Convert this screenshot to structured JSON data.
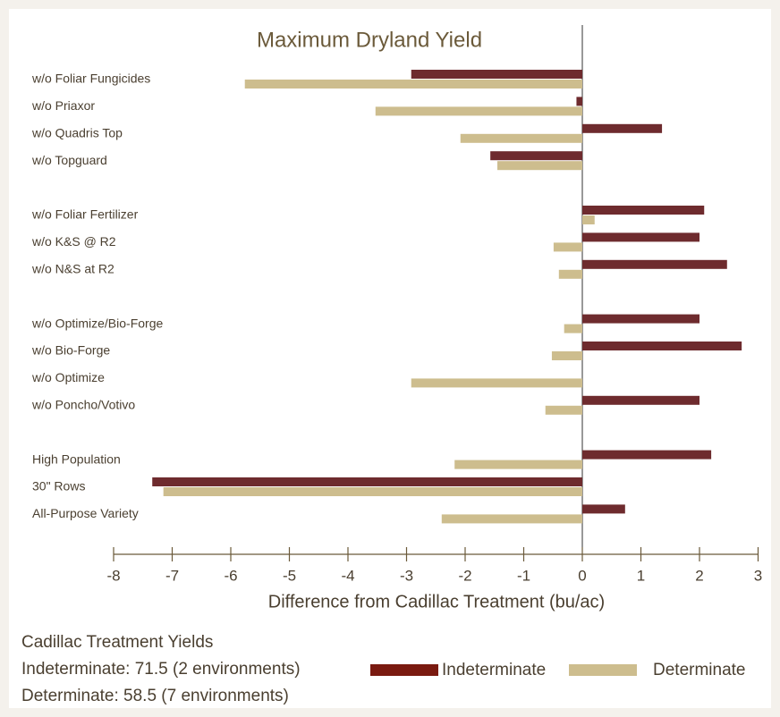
{
  "chart_data": {
    "type": "barh",
    "title": "Maximum Dryland Yield",
    "xlabel": "Difference from Cadillac Treatment (bu/ac)",
    "categories": [
      "w/o Foliar Fungicides",
      "w/o Priaxor",
      "w/o Quadris Top",
      "w/o Topguard",
      null,
      "w/o Foliar Fertilizer",
      "w/o K&S @ R2",
      "w/o N&S at R2",
      null,
      "w/o Optimize/Bio-Forge",
      "w/o Bio-Forge",
      "w/o Optimize",
      "w/o Poncho/Votivo",
      null,
      "High Population",
      "30\" Rows",
      "All-Purpose Variety"
    ],
    "series": [
      {
        "name": "Indeterminate",
        "color": "#6e2b2e",
        "values": [
          -2.92,
          -0.1,
          1.36,
          -1.57,
          null,
          2.08,
          2.0,
          2.47,
          null,
          2.0,
          2.72,
          0,
          2.0,
          null,
          2.2,
          -7.34,
          0.73
        ]
      },
      {
        "name": "Determinate",
        "color": "#cdbd8e",
        "values": [
          -5.76,
          -3.53,
          -2.08,
          -1.45,
          null,
          0.21,
          -0.49,
          -0.4,
          null,
          -0.31,
          -0.52,
          -2.92,
          -0.63,
          null,
          -2.18,
          -7.15,
          -2.4
        ]
      }
    ],
    "xlim": [
      -8,
      3
    ],
    "xticks": [
      -8,
      -7,
      -6,
      -5,
      -4,
      -3,
      -2,
      -1,
      0,
      1,
      2,
      3
    ],
    "annotations": [
      "Cadillac Treatment Yields",
      "Indeterminate: 71.5 (2 environments)",
      "Determinate: 58.5 (7 environments)"
    ],
    "legend_colors": [
      "#7a1a10",
      "#cdbd8e"
    ]
  }
}
